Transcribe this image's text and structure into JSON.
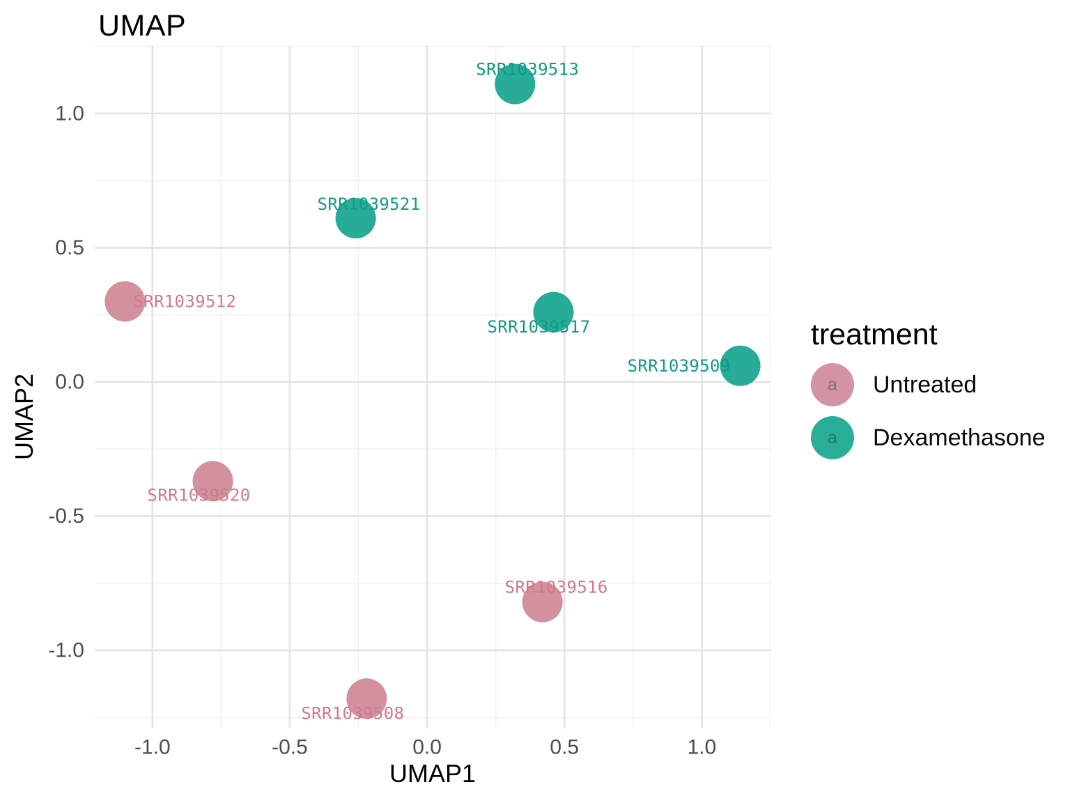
{
  "title": "UMAP",
  "axes": {
    "x_title": "UMAP1",
    "y_title": "UMAP2"
  },
  "legend": {
    "title": "treatment",
    "key_glyph": "a",
    "items": [
      {
        "label": "Untreated",
        "color": "#D18B9B"
      },
      {
        "label": "Dexamethasone",
        "color": "#1CA891"
      }
    ]
  },
  "colors": {
    "background": "#ffffff",
    "grid_major": "#E3E3E3",
    "grid_minor": "#EFEFEF",
    "tick_label": "#4D4D4D",
    "untreated_point": "#D18B9B",
    "untreated_label": "#D0798D",
    "dexamethasone_point": "#1CA891",
    "dexamethasone_label": "#109B84"
  },
  "chart_data": {
    "type": "scatter",
    "title": "UMAP",
    "xlabel": "UMAP1",
    "ylabel": "UMAP2",
    "xlim": [
      -1.21,
      1.25
    ],
    "ylim": [
      -1.291,
      1.2516
    ],
    "grid": true,
    "legend_position": "right",
    "x_ticks": [
      {
        "value": -1.0,
        "label": "-1.0"
      },
      {
        "value": -0.5,
        "label": "-0.5"
      },
      {
        "value": 0.0,
        "label": "0.0"
      },
      {
        "value": 0.5,
        "label": "0.5"
      },
      {
        "value": 1.0,
        "label": "1.0"
      }
    ],
    "y_ticks": [
      {
        "value": 1.0,
        "label": "1.0"
      },
      {
        "value": 0.5,
        "label": "0.5"
      },
      {
        "value": 0.0,
        "label": "0.0"
      },
      {
        "value": -0.5,
        "label": "-0.5"
      },
      {
        "value": -1.0,
        "label": "-1.0"
      }
    ],
    "x_minor": [
      -0.75,
      -0.25,
      0.25,
      0.75,
      1.25
    ],
    "y_minor": [
      1.25,
      0.75,
      0.25,
      -0.25,
      -0.75,
      -1.25
    ],
    "series": [
      {
        "name": "Untreated",
        "color": "#D18B9B",
        "label_color": "#D0798D",
        "points": [
          {
            "id": "SRR1039512",
            "x": -1.1,
            "y": 0.3,
            "label_dx": 86,
            "label_dy": 0
          },
          {
            "id": "SRR1039520",
            "x": -0.78,
            "y": -0.37,
            "label_dx": -20,
            "label_dy": 20
          },
          {
            "id": "SRR1039516",
            "x": 0.42,
            "y": -0.82,
            "label_dx": 20,
            "label_dy": -21
          },
          {
            "id": "SRR1039508",
            "x": -0.22,
            "y": -1.18,
            "label_dx": -20,
            "label_dy": 21
          }
        ]
      },
      {
        "name": "Dexamethasone",
        "color": "#1CA891",
        "label_color": "#109B84",
        "points": [
          {
            "id": "SRR1039513",
            "x": 0.32,
            "y": 1.11,
            "label_dx": 18,
            "label_dy": -21
          },
          {
            "id": "SRR1039521",
            "x": -0.26,
            "y": 0.61,
            "label_dx": 19,
            "label_dy": -20
          },
          {
            "id": "SRR1039517",
            "x": 0.46,
            "y": 0.26,
            "label_dx": -21,
            "label_dy": 21
          },
          {
            "id": "SRR1039509",
            "x": 1.14,
            "y": 0.06,
            "label_dx": -88,
            "label_dy": 0
          }
        ]
      }
    ]
  }
}
